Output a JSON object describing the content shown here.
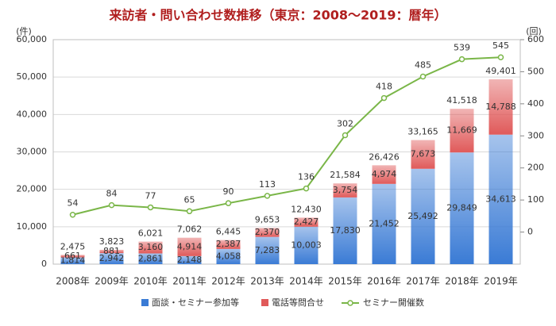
{
  "chart_data": {
    "type": "bar",
    "title": "来訪者・問い合わせ数推移（東京：2008～2019：暦年）",
    "ylabel": "(件)",
    "y2label": "(回)",
    "categories": [
      "2008年",
      "2009年",
      "2010年",
      "2011年",
      "2012年",
      "2013年",
      "2014年",
      "2015年",
      "2016年",
      "2017年",
      "2018年",
      "2019年"
    ],
    "series": [
      {
        "name": "面談・セミナー参加等",
        "type": "bar",
        "color": "#3a7bd5",
        "values": [
          1814,
          2942,
          2861,
          2148,
          4058,
          7283,
          10003,
          17830,
          21452,
          25492,
          29849,
          34613
        ],
        "value_labels": [
          "1,814",
          "2,942",
          "2,861",
          "2,148",
          "4,058",
          "7,283",
          "10,003",
          "17,830",
          "21,452",
          "25,492",
          "29,849",
          "34,613"
        ]
      },
      {
        "name": "電話等問合せ",
        "type": "bar",
        "color": "#e05a5a",
        "values": [
          661,
          881,
          3160,
          4914,
          2387,
          2370,
          2427,
          3754,
          4974,
          7673,
          11669,
          14788
        ],
        "value_labels": [
          "661",
          "881",
          "3,160",
          "4,914",
          "2,387",
          "2,370",
          "2,427",
          "3,754",
          "4,974",
          "7,673",
          "11,669",
          "14,788"
        ]
      },
      {
        "name": "セミナー開催数",
        "type": "line",
        "axis": "y2",
        "color": "#7ab648",
        "values": [
          54,
          84,
          77,
          65,
          90,
          113,
          136,
          302,
          418,
          485,
          539,
          545
        ]
      }
    ],
    "totals": {
      "values": [
        2475,
        3823,
        6021,
        7062,
        6445,
        9653,
        12430,
        21584,
        26426,
        33165,
        41518,
        49401
      ],
      "value_labels": [
        "2,475",
        "3,823",
        "6,021",
        "7,062",
        "6,445",
        "9,653",
        "12,430",
        "21,584",
        "26,426",
        "33,165",
        "41,518",
        "49,401"
      ]
    },
    "ylim": [
      0,
      60000
    ],
    "yticks": [
      0,
      {
        "value": 10000,
        "label": "10,000"
      },
      {
        "value": 20000,
        "label": "20,000"
      },
      {
        "value": 30000,
        "label": "30,000"
      },
      {
        "value": 40000,
        "label": "40,000"
      },
      {
        "value": 50000,
        "label": "50,000"
      },
      {
        "value": 60000,
        "label": "60,000"
      }
    ],
    "y2lim": [
      -100,
      600
    ],
    "y2ticks": [
      0,
      100,
      200,
      300,
      400,
      500,
      600
    ],
    "grid": true
  }
}
